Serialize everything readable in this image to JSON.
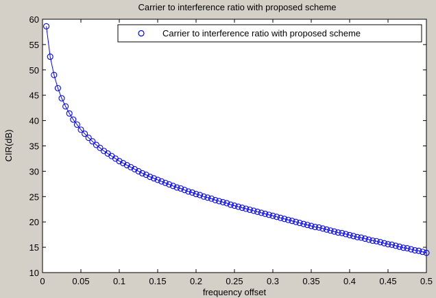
{
  "chart_data": {
    "type": "line",
    "title": "Carrier to interference ratio with proposed scheme",
    "xlabel": "frequency offset",
    "ylabel": "CIR(dB)",
    "xlim": [
      0,
      0.5
    ],
    "ylim": [
      10,
      60
    ],
    "xticks": [
      0,
      0.05,
      0.1,
      0.15,
      0.2,
      0.25,
      0.3,
      0.35,
      0.4,
      0.45,
      0.5
    ],
    "xtick_labels": [
      "0",
      "0.05",
      "0.1",
      "0.15",
      "0.2",
      "0.25",
      "0.3",
      "0.35",
      "0.4",
      "0.45",
      "0.5"
    ],
    "yticks": [
      10,
      15,
      20,
      25,
      30,
      35,
      40,
      45,
      50,
      55,
      60
    ],
    "ytick_labels": [
      "10",
      "15",
      "20",
      "25",
      "30",
      "35",
      "40",
      "45",
      "50",
      "55",
      "60"
    ],
    "grid": false,
    "legend": "top-right",
    "series": [
      {
        "name": "Carrier to interference ratio with proposed scheme",
        "color": "#0000ff",
        "marker": "circle",
        "x": [
          0.005,
          0.01,
          0.015,
          0.02,
          0.025,
          0.03,
          0.035,
          0.04,
          0.045,
          0.05,
          0.055,
          0.06,
          0.065,
          0.07,
          0.075,
          0.08,
          0.085,
          0.09,
          0.095,
          0.1,
          0.105,
          0.11,
          0.115,
          0.12,
          0.125,
          0.13,
          0.135,
          0.14,
          0.145,
          0.15,
          0.155,
          0.16,
          0.165,
          0.17,
          0.175,
          0.18,
          0.185,
          0.19,
          0.195,
          0.2,
          0.205,
          0.21,
          0.215,
          0.22,
          0.225,
          0.23,
          0.235,
          0.24,
          0.245,
          0.25,
          0.255,
          0.26,
          0.265,
          0.27,
          0.275,
          0.28,
          0.285,
          0.29,
          0.295,
          0.3,
          0.305,
          0.31,
          0.315,
          0.32,
          0.325,
          0.33,
          0.335,
          0.34,
          0.345,
          0.35,
          0.355,
          0.36,
          0.365,
          0.37,
          0.375,
          0.38,
          0.385,
          0.39,
          0.395,
          0.4,
          0.405,
          0.41,
          0.415,
          0.42,
          0.425,
          0.43,
          0.435,
          0.44,
          0.445,
          0.45,
          0.455,
          0.46,
          0.465,
          0.47,
          0.475,
          0.48,
          0.485,
          0.49,
          0.495,
          0.5
        ],
        "y": [
          58.6,
          52.6,
          49.0,
          46.4,
          44.4,
          42.8,
          41.4,
          40.2,
          39.2,
          38.2,
          37.4,
          36.6,
          35.9,
          35.2,
          34.6,
          34.0,
          33.5,
          33.0,
          32.5,
          32.0,
          31.6,
          31.2,
          30.8,
          30.4,
          30.0,
          29.6,
          29.3,
          28.9,
          28.6,
          28.3,
          28.0,
          27.7,
          27.4,
          27.1,
          26.8,
          26.6,
          26.3,
          26.0,
          25.8,
          25.5,
          25.3,
          25.0,
          24.8,
          24.6,
          24.3,
          24.1,
          23.9,
          23.7,
          23.4,
          23.2,
          23.0,
          22.8,
          22.6,
          22.4,
          22.2,
          22.0,
          21.8,
          21.6,
          21.4,
          21.2,
          21.0,
          20.8,
          20.6,
          20.4,
          20.2,
          20.0,
          19.8,
          19.6,
          19.4,
          19.2,
          19.0,
          18.9,
          18.7,
          18.5,
          18.3,
          18.1,
          17.9,
          17.8,
          17.6,
          17.4,
          17.2,
          17.0,
          16.9,
          16.7,
          16.5,
          16.3,
          16.2,
          16.0,
          15.8,
          15.6,
          15.5,
          15.3,
          15.1,
          14.9,
          14.8,
          14.6,
          14.4,
          14.3,
          14.1,
          13.9
        ]
      }
    ]
  }
}
